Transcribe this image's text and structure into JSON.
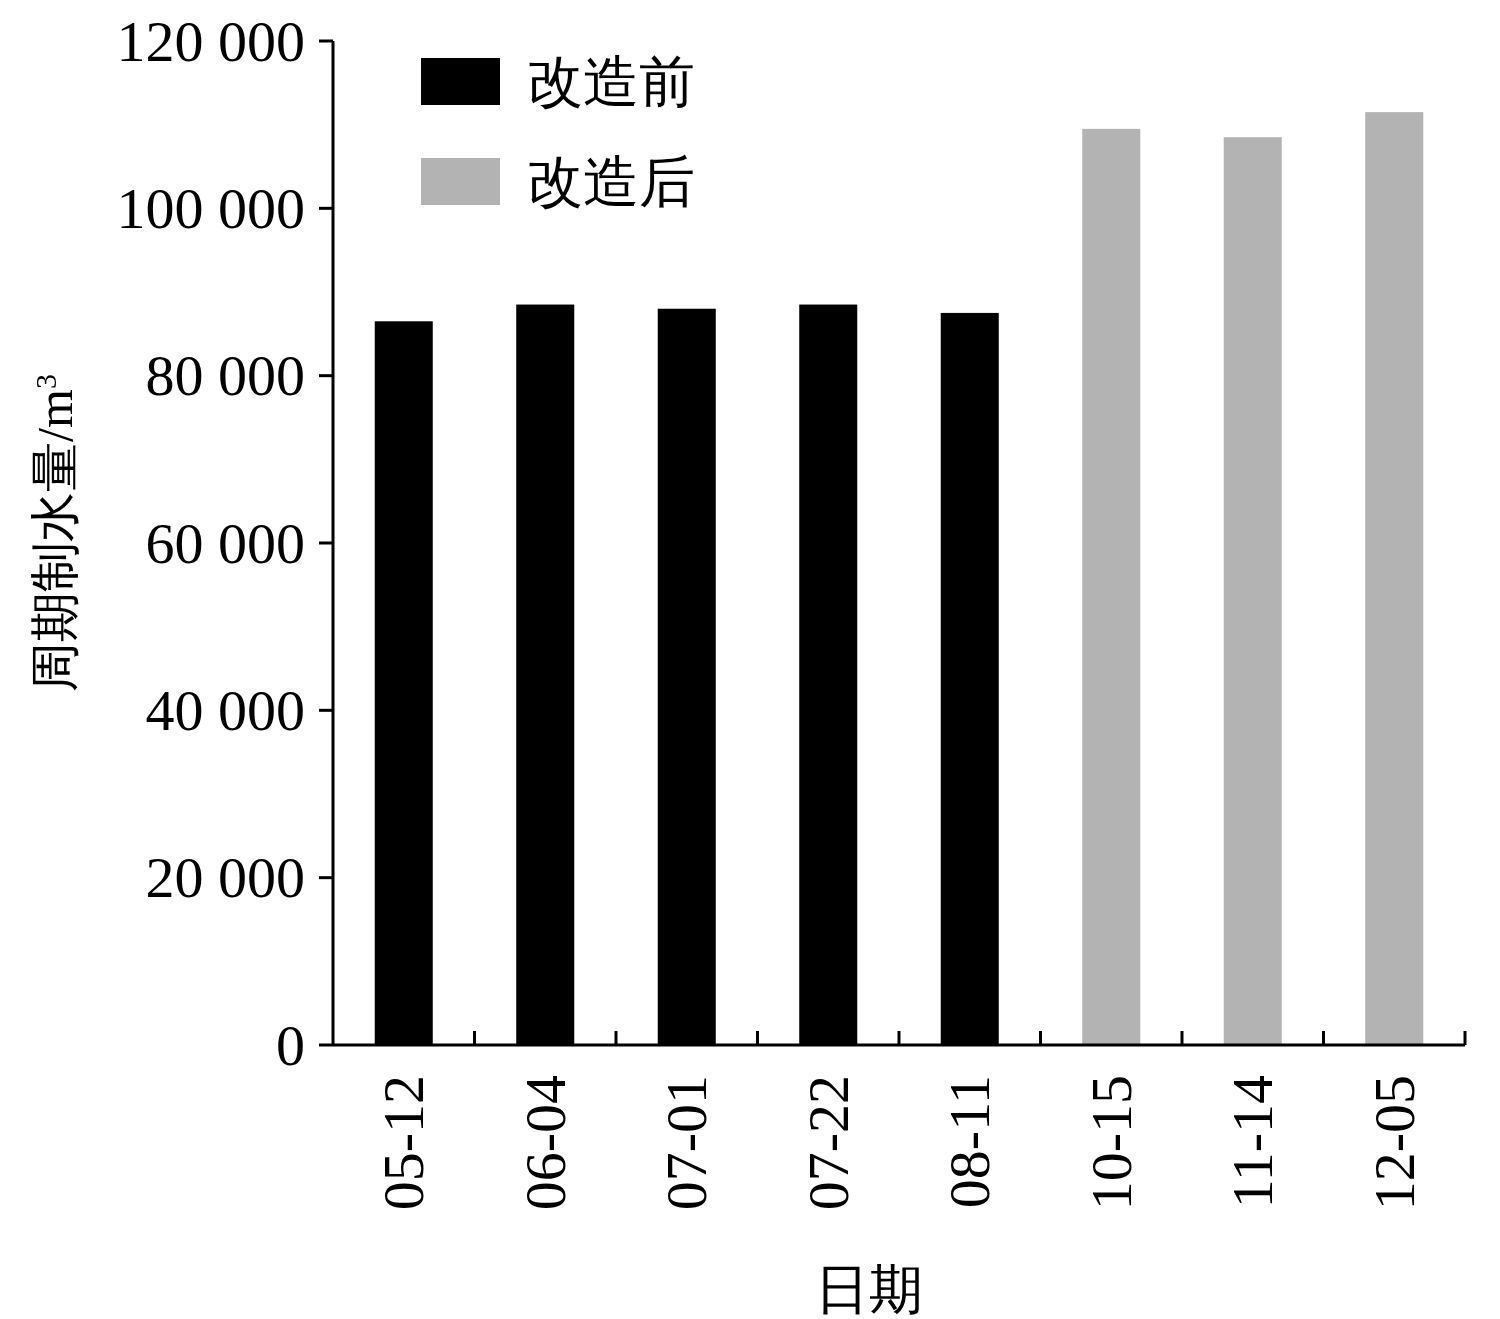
{
  "chart_data": {
    "type": "bar",
    "xlabel": "日期",
    "ylabel": "周期制水量/m$^{3}$",
    "categories": [
      "05-12",
      "06-04",
      "07-01",
      "07-22",
      "08-11",
      "10-15",
      "11-14",
      "12-05"
    ],
    "series": [
      {
        "name": "改造前",
        "color": "#000000",
        "values": [
          86500,
          88500,
          88000,
          88500,
          87500,
          null,
          null,
          null
        ]
      },
      {
        "name": "改造后",
        "color": "#b3b3b3",
        "values": [
          null,
          null,
          null,
          null,
          null,
          109500,
          108500,
          111500
        ]
      }
    ],
    "ylim": [
      0,
      120000
    ],
    "yticks": [
      {
        "value": 0,
        "label": "0"
      },
      {
        "value": 20000,
        "label": "20 000"
      },
      {
        "value": 40000,
        "label": "40 000"
      },
      {
        "value": 60000,
        "label": "60 000"
      },
      {
        "value": 80000,
        "label": "80 000"
      },
      {
        "value": 100000,
        "label": "100 000"
      },
      {
        "value": 120000,
        "label": "120 000"
      }
    ],
    "legend": "top left"
  }
}
